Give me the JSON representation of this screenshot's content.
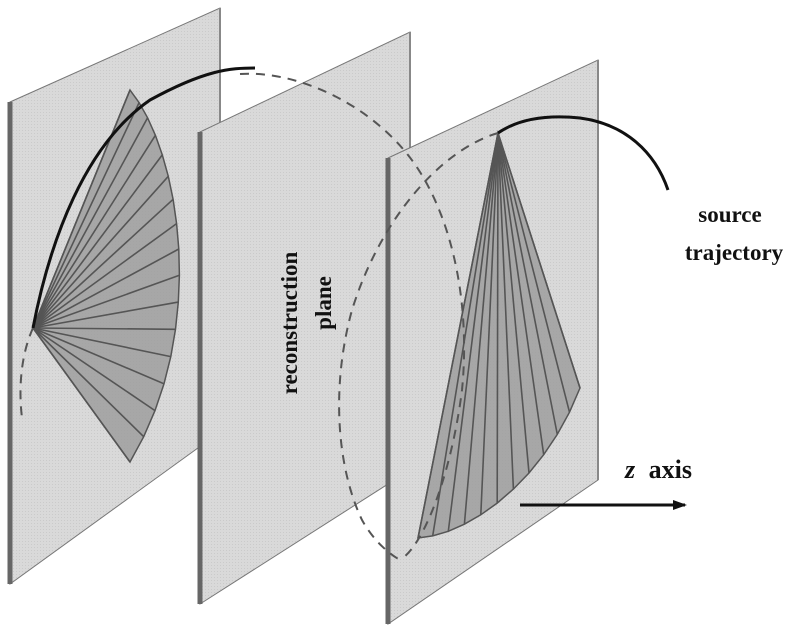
{
  "labels": {
    "source": "source",
    "trajectory": "trajectory",
    "reconstruction": "reconstruction",
    "plane": "plane",
    "z_axis_letter": "z",
    "z_axis_word": "axis"
  },
  "colors": {
    "plane_fill": "#d8d8d8",
    "plane_edge": "#6b6b6b",
    "fan_fill": "#9e9e9e",
    "fan_line": "#555555",
    "trajectory": "#111111",
    "dashed": "#555555",
    "arrow": "#111111"
  }
}
